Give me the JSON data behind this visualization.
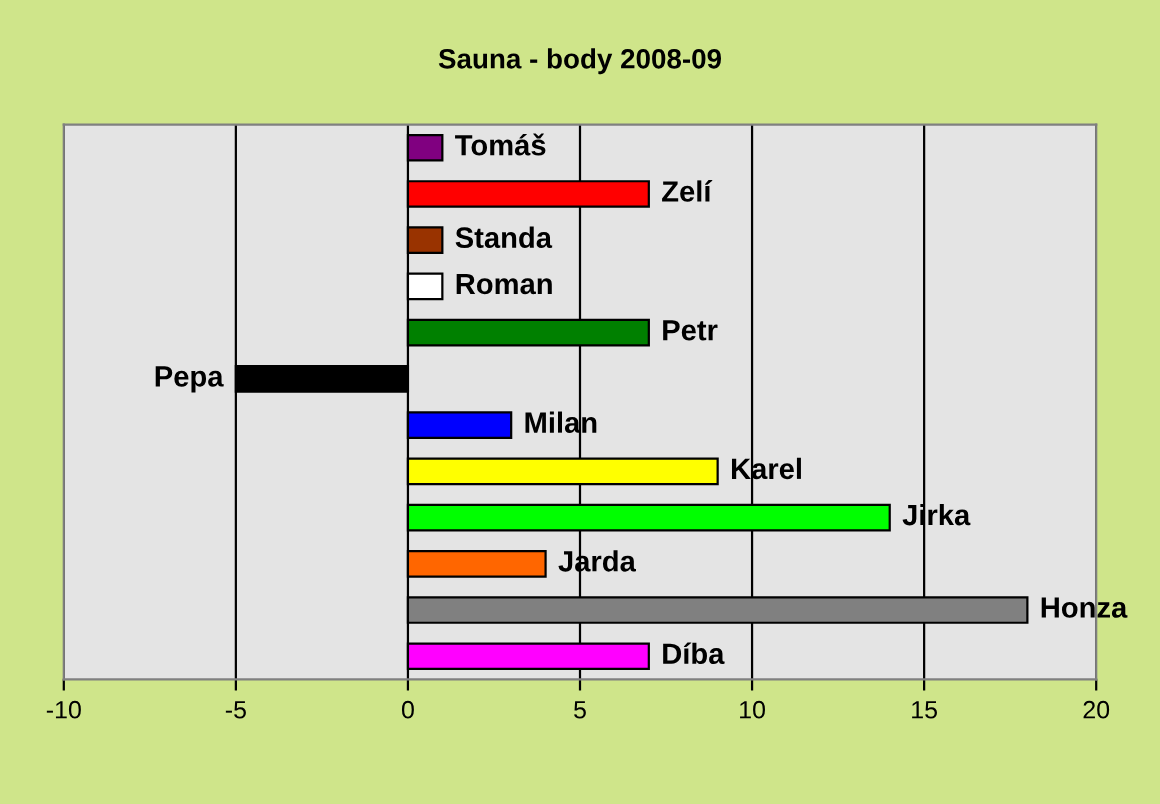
{
  "chart_data": {
    "type": "bar",
    "orientation": "horizontal",
    "title": "Sauna - body 2008-09",
    "categories": [
      "Tomáš",
      "Zelí",
      "Standa",
      "Roman",
      "Petr",
      "Pepa",
      "Milan",
      "Karel",
      "Jirka",
      "Jarda",
      "Honza",
      "Díba"
    ],
    "values": [
      1,
      7,
      1,
      1,
      7,
      -5,
      3,
      9,
      14,
      4,
      18,
      7
    ],
    "colors": [
      "#800080",
      "#ff0000",
      "#993300",
      "#ffffff",
      "#008000",
      "#000000",
      "#0000ff",
      "#ffff00",
      "#00ff00",
      "#ff6600",
      "#808080",
      "#ff00ff"
    ],
    "xlim": [
      -10,
      20
    ],
    "xticks": [
      -10,
      -5,
      0,
      5,
      10,
      15,
      20
    ],
    "grid": "x",
    "tick_labels": "x",
    "legend": false
  }
}
